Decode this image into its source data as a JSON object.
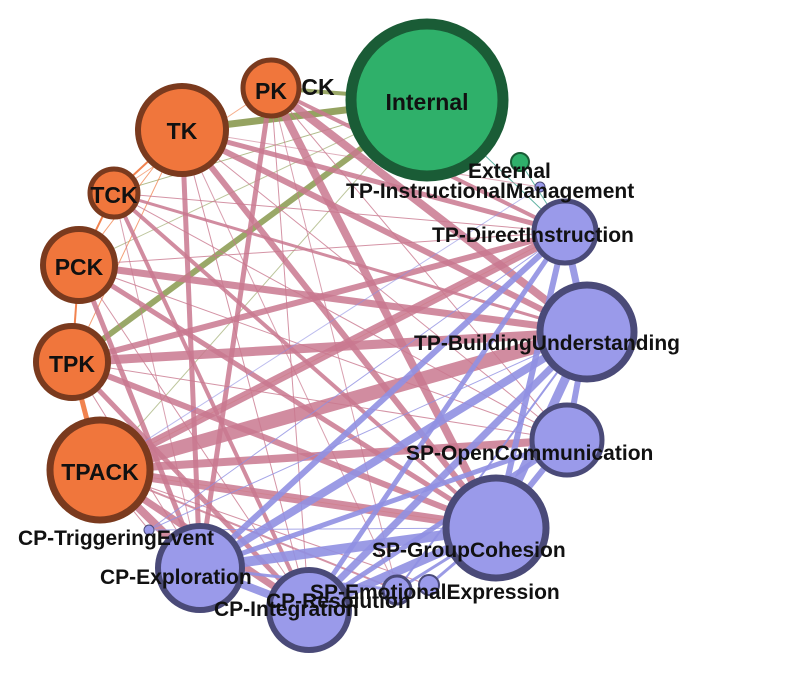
{
  "colors": {
    "tpack_fill": "#f0763c",
    "tpack_border": "#7a3a1e",
    "internal_fill": "#2fb06a",
    "internal_border": "#1a5c36",
    "coi_fill": "#9a9aea",
    "coi_border": "#4a4a78",
    "edge_tpack_coi": "#c9788f",
    "edge_coi_coi": "#9090e2",
    "edge_olive": "#8f9e58",
    "edge_orange": "#f0763c",
    "edge_teal": "#3aa08c"
  },
  "nodes": [
    {
      "id": "tk",
      "label": "TK",
      "group": "tpack"
    },
    {
      "id": "pk",
      "label": "PK",
      "group": "tpack"
    },
    {
      "id": "ck",
      "label": "CK",
      "group": "tpack"
    },
    {
      "id": "tck",
      "label": "TCK",
      "group": "tpack"
    },
    {
      "id": "pck",
      "label": "PCK",
      "group": "tpack"
    },
    {
      "id": "tpk",
      "label": "TPK",
      "group": "tpack"
    },
    {
      "id": "tpack",
      "label": "TPACK",
      "group": "tpack"
    },
    {
      "id": "internal",
      "label": "Internal",
      "group": "internal"
    },
    {
      "id": "external",
      "label": "External",
      "group": "internal"
    },
    {
      "id": "tp_im",
      "label": "TP-InstructionalManagement",
      "group": "coi"
    },
    {
      "id": "tp_di",
      "label": "TP-DirectInstruction",
      "group": "coi"
    },
    {
      "id": "tp_bu",
      "label": "TP-BuildingUnderstanding",
      "group": "coi"
    },
    {
      "id": "sp_oc",
      "label": "SP-OpenCommunication",
      "group": "coi"
    },
    {
      "id": "sp_gc",
      "label": "SP-GroupCohesion",
      "group": "coi"
    },
    {
      "id": "sp_ee",
      "label": "SP-EmotionalExpression",
      "group": "coi"
    },
    {
      "id": "cp_res",
      "label": "CP-Resolution",
      "group": "coi"
    },
    {
      "id": "cp_int",
      "label": "CP-Integration",
      "group": "coi"
    },
    {
      "id": "cp_exp",
      "label": "CP-Exploration",
      "group": "coi"
    },
    {
      "id": "cp_te",
      "label": "CP-TriggeringEvent",
      "group": "coi"
    }
  ]
}
